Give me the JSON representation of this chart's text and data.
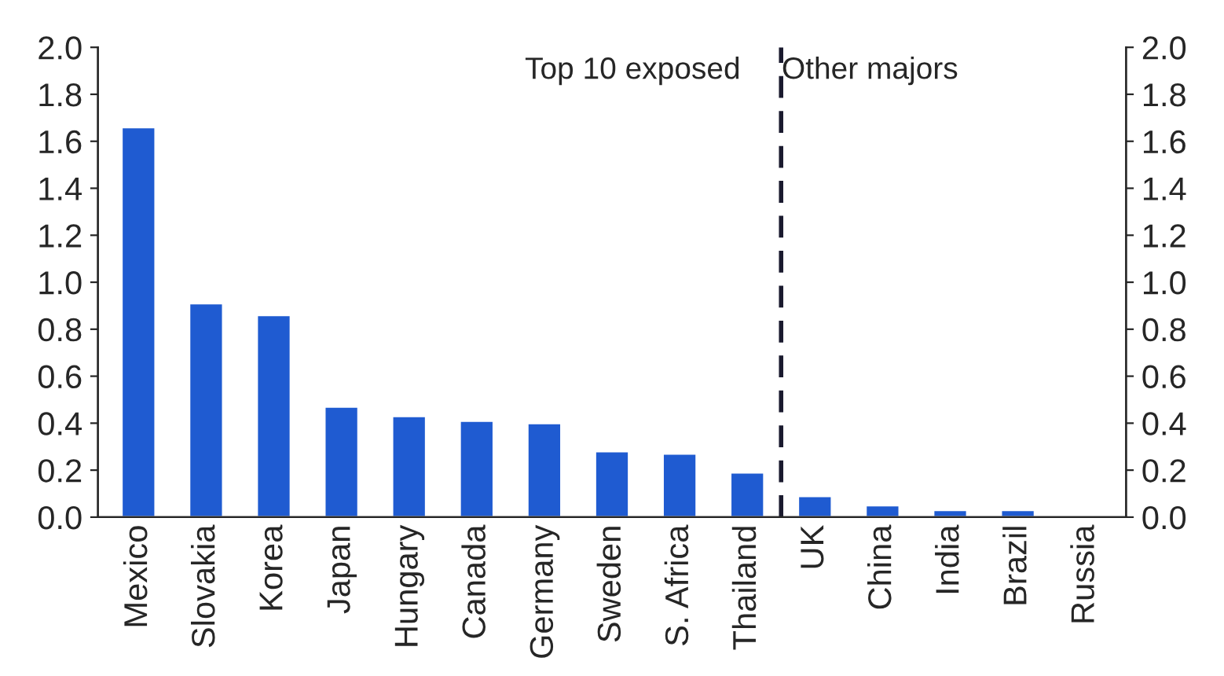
{
  "chart_data": {
    "type": "bar",
    "categories": [
      "Mexico",
      "Slovakia",
      "Korea",
      "Japan",
      "Hungary",
      "Canada",
      "Germany",
      "Sweden",
      "S. Africa",
      "Thailand",
      "UK",
      "China",
      "India",
      "Brazil",
      "Russia"
    ],
    "values": [
      1.66,
      0.91,
      0.86,
      0.47,
      0.43,
      0.41,
      0.4,
      0.28,
      0.27,
      0.19,
      0.09,
      0.05,
      0.03,
      0.03,
      null
    ],
    "color": "#1f5bd1",
    "ylim": [
      0,
      2
    ],
    "yticks": [
      {
        "value": 0,
        "label": "0.0"
      },
      {
        "value": 0.2,
        "label": "0.2"
      },
      {
        "value": 0.4,
        "label": "0.4"
      },
      {
        "value": 0.6,
        "label": "0.6"
      },
      {
        "value": 0.8,
        "label": "0.8"
      },
      {
        "value": 1.0,
        "label": "1.0"
      },
      {
        "value": 1.2,
        "label": "1.2"
      },
      {
        "value": 1.4,
        "label": "1.4"
      },
      {
        "value": 1.6,
        "label": "1.6"
      },
      {
        "value": 1.8,
        "label": "1.8"
      },
      {
        "value": 2.0,
        "label": "2.0"
      }
    ],
    "y2lim": [
      0,
      2
    ],
    "y2ticks": [
      {
        "value": 0,
        "label": "0.0"
      },
      {
        "value": 0.2,
        "label": "0.2"
      },
      {
        "value": 0.4,
        "label": "0.4"
      },
      {
        "value": 0.6,
        "label": "0.6"
      },
      {
        "value": 0.8,
        "label": "0.8"
      },
      {
        "value": 1.0,
        "label": "1.0"
      },
      {
        "value": 1.2,
        "label": "1.2"
      },
      {
        "value": 1.4,
        "label": "1.4"
      },
      {
        "value": 1.6,
        "label": "1.6"
      },
      {
        "value": 1.8,
        "label": "1.8"
      },
      {
        "value": 2.0,
        "label": "2.0"
      }
    ],
    "annotations": [
      "Top 10 exposed",
      "Other majors"
    ],
    "grid": false,
    "legend": false
  }
}
